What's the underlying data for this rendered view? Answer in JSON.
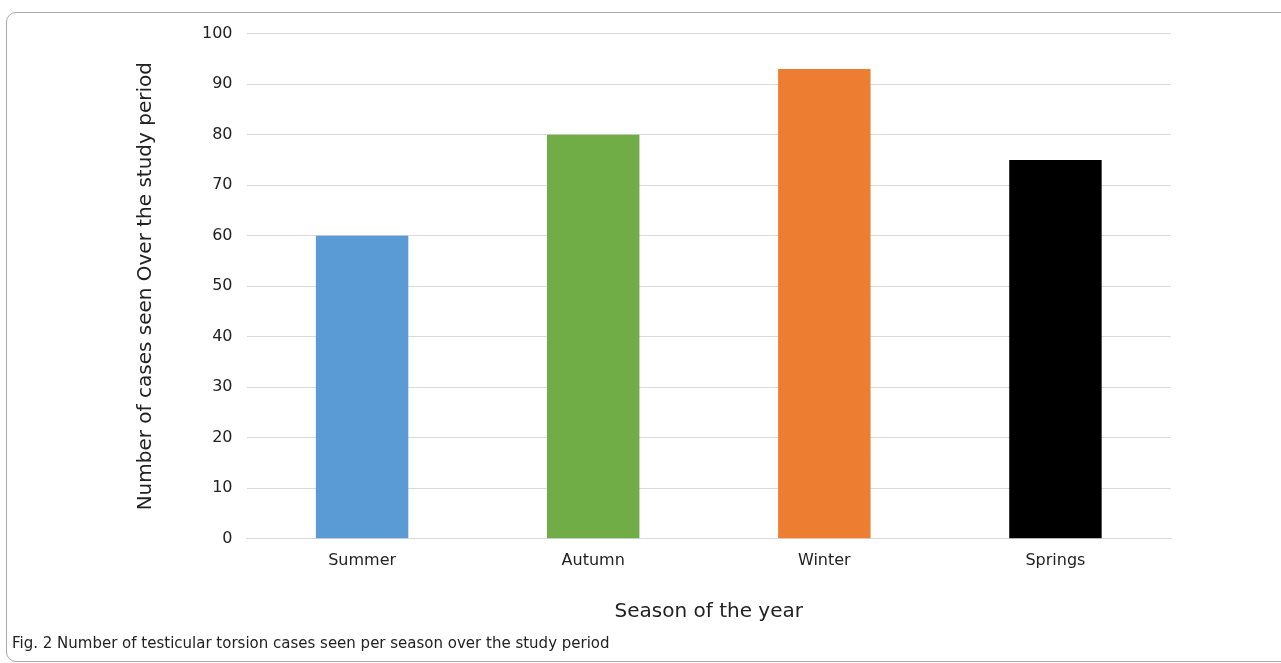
{
  "chart_data": {
    "type": "bar",
    "xlabel": "Season of the year",
    "ylabel": "Number of cases seen Over the study period",
    "categories": [
      "Summer",
      "Autumn",
      "Winter",
      "Springs"
    ],
    "values": [
      60,
      80,
      93,
      75
    ],
    "colors": [
      "#5b9bd5",
      "#70ad47",
      "#ed7d31",
      "#000000"
    ],
    "ylim": [
      0,
      100
    ],
    "yticks": [
      0,
      10,
      20,
      30,
      40,
      50,
      60,
      70,
      80,
      90,
      100
    ],
    "grid": "y",
    "legend": false,
    "annotations": [
      "Fig. 2  Number of testicular torsion cases seen per season over the study period"
    ]
  }
}
